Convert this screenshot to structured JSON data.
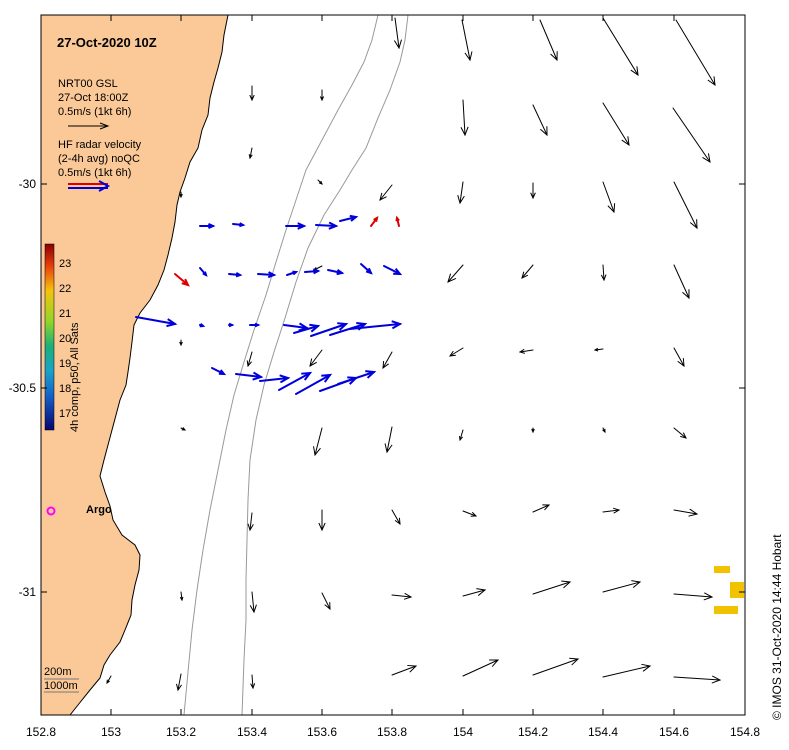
{
  "title": "27-Oct-2020 10Z",
  "legend": {
    "model_lines": [
      "NRT00 GSL",
      "27-Oct 18:00Z",
      "0.5m/s (1kt 6h)"
    ],
    "radar_lines": [
      "HF radar velocity",
      "(2-4h avg) noQC",
      "0.5m/s (1kt 6h)"
    ]
  },
  "colorbar": {
    "label": "4h comp, p50, All Sats",
    "ticks": [
      "23",
      "22",
      "21",
      "20",
      "19",
      "18",
      "17"
    ]
  },
  "argo_label": "Argo",
  "depth_labels": [
    "200m",
    "1000m"
  ],
  "credit": "© IMOS 31-Oct-2020 14:44 Hobart",
  "axes": {
    "x_ticks": [
      "152.8",
      "153",
      "153.2",
      "153.4",
      "153.6",
      "153.8",
      "154",
      "154.2",
      "154.4",
      "154.6",
      "154.8"
    ],
    "y_ticks": [
      "-30",
      "-30.5",
      "-31"
    ]
  },
  "colors": {
    "land": "#FBC998",
    "radar_vectors": "#0000DD",
    "radar_flag": "#DD0000",
    "model_vectors": "#000000",
    "argo": "#FF00FF",
    "sst_patches": "#F2C200"
  }
}
